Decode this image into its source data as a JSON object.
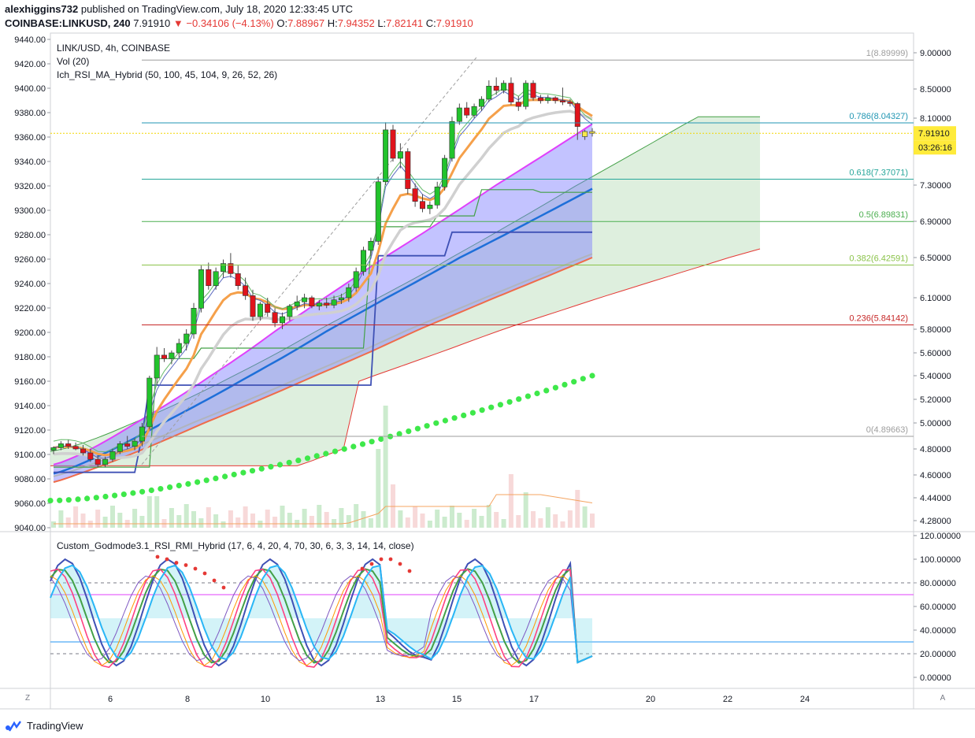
{
  "header": {
    "publisher": "alexhiggins732",
    "published_text": "published on TradingView.com, July 18, 2020 12:33:45 UTC",
    "symbol": "COINBASE:LINKUSD, 240",
    "last": "7.91910",
    "change": "−0.34106 (−4.13%)",
    "o_label": "O:",
    "o": "7.88967",
    "h_label": "H:",
    "h": "7.94352",
    "l_label": "L:",
    "l": "7.82141",
    "c_label": "C:",
    "c": "7.91910"
  },
  "legend": {
    "line1": "LINK/USD, 4h, COINBASE",
    "line2": "Vol (20)",
    "line3": "Ich_RSI_MA_Hybrid (50, 100, 45, 104, 9, 26, 52, 26)",
    "oscillator": "Custom_Godmode3.1_RSI_RMI_Hybrid (17, 6, 4, 20, 4, 70, 30, 6, 3, 3, 14, 14, close)"
  },
  "colors": {
    "up": "#22c32c",
    "down": "#e0141c",
    "cloud_bull": "#d3ead3",
    "cloud_bear": "#f6d6d6",
    "fib_1": "#9e9e9e",
    "fib_786": "#2196b3",
    "fib_618": "#26a69a",
    "fib_5": "#4caf50",
    "fib_382": "#8bc34a",
    "fib_236": "#c62828",
    "fib_0": "#9e9e9e",
    "last_price_bg": "#ffeb3b"
  },
  "footer": {
    "brand": "TradingView",
    "btn_left": "Z",
    "btn_right": "A"
  },
  "chart_data": {
    "type": "candlestick",
    "left_axis_ticks": [
      "9440.00",
      "9420.00",
      "9400.00",
      "9380.00",
      "9360.00",
      "9340.00",
      "9320.00",
      "9300.00",
      "9280.00",
      "9260.00",
      "9240.00",
      "9220.00",
      "9200.00",
      "9180.00",
      "9160.00",
      "9140.00",
      "9120.00",
      "9100.00",
      "9080.00",
      "9060.00",
      "9040.00"
    ],
    "right_axis_ticks": [
      "9.00000",
      "8.50000",
      "8.10000",
      "7.30000",
      "6.90000",
      "6.50000",
      "6.10000",
      "5.80000",
      "5.60000",
      "5.40000",
      "5.20000",
      "5.00000",
      "4.80000",
      "4.60000",
      "4.44000",
      "4.28000"
    ],
    "right_axis_values": [
      9.0,
      8.5,
      8.1,
      7.3,
      6.9,
      6.5,
      6.1,
      5.8,
      5.6,
      5.4,
      5.2,
      5.0,
      4.8,
      4.6,
      4.44,
      4.28
    ],
    "x_ticks": [
      "6",
      "8",
      "10",
      "13",
      "15",
      "17",
      "20",
      "22",
      "24"
    ],
    "last_price_label": "7.91910",
    "countdown": "03:26:16",
    "fib_levels": [
      {
        "label": "1(8.89999)",
        "value": 8.89999
      },
      {
        "label": "0.786(8.04327)",
        "value": 8.04327
      },
      {
        "label": "0.618(7.37071)",
        "value": 7.37071
      },
      {
        "label": "0.5(6.89831)",
        "value": 6.89831
      },
      {
        "label": "0.382(6.42591)",
        "value": 6.42591
      },
      {
        "label": "0.236(5.84142)",
        "value": 5.84142
      },
      {
        "label": "0(4.89663)",
        "value": 4.89663
      }
    ],
    "candles": [
      [
        4.79,
        4.82,
        4.76,
        4.81
      ],
      [
        4.81,
        4.86,
        4.79,
        4.84
      ],
      [
        4.84,
        4.87,
        4.8,
        4.82
      ],
      [
        4.82,
        4.85,
        4.79,
        4.8
      ],
      [
        4.8,
        4.83,
        4.75,
        4.77
      ],
      [
        4.77,
        4.8,
        4.7,
        4.72
      ],
      [
        4.72,
        4.75,
        4.66,
        4.68
      ],
      [
        4.68,
        4.74,
        4.66,
        4.72
      ],
      [
        4.72,
        4.8,
        4.7,
        4.78
      ],
      [
        4.78,
        4.86,
        4.76,
        4.84
      ],
      [
        4.84,
        4.9,
        4.8,
        4.82
      ],
      [
        4.82,
        4.88,
        4.79,
        4.86
      ],
      [
        4.86,
        5.0,
        4.82,
        4.97
      ],
      [
        4.97,
        5.4,
        4.95,
        5.38
      ],
      [
        5.38,
        5.65,
        5.32,
        5.58
      ],
      [
        5.58,
        5.64,
        5.52,
        5.55
      ],
      [
        5.55,
        5.62,
        5.5,
        5.6
      ],
      [
        5.6,
        5.72,
        5.56,
        5.68
      ],
      [
        5.68,
        5.8,
        5.62,
        5.76
      ],
      [
        5.76,
        6.05,
        5.72,
        6.0
      ],
      [
        6.0,
        6.42,
        5.96,
        6.38
      ],
      [
        6.38,
        6.45,
        6.18,
        6.22
      ],
      [
        6.22,
        6.4,
        6.18,
        6.36
      ],
      [
        6.36,
        6.48,
        6.3,
        6.44
      ],
      [
        6.44,
        6.55,
        6.3,
        6.34
      ],
      [
        6.34,
        6.42,
        6.18,
        6.22
      ],
      [
        6.22,
        6.3,
        6.08,
        6.12
      ],
      [
        6.12,
        6.18,
        5.88,
        5.92
      ],
      [
        5.92,
        6.06,
        5.88,
        6.04
      ],
      [
        6.04,
        6.1,
        5.92,
        5.96
      ],
      [
        5.96,
        6.0,
        5.82,
        5.86
      ],
      [
        5.86,
        5.96,
        5.8,
        5.92
      ],
      [
        5.92,
        6.04,
        5.88,
        6.02
      ],
      [
        6.02,
        6.12,
        5.98,
        6.06
      ],
      [
        6.06,
        6.14,
        6.0,
        6.1
      ],
      [
        6.1,
        6.12,
        6.0,
        6.02
      ],
      [
        6.02,
        6.08,
        5.98,
        6.05
      ],
      [
        6.05,
        6.1,
        6.0,
        6.03
      ],
      [
        6.03,
        6.12,
        6.0,
        6.08
      ],
      [
        6.08,
        6.14,
        6.04,
        6.1
      ],
      [
        6.1,
        6.24,
        6.06,
        6.2
      ],
      [
        6.2,
        6.4,
        6.16,
        6.36
      ],
      [
        6.36,
        6.62,
        6.32,
        6.58
      ],
      [
        6.58,
        6.72,
        6.52,
        6.68
      ],
      [
        6.68,
        7.4,
        6.64,
        7.34
      ],
      [
        7.34,
        8.05,
        7.3,
        7.96
      ],
      [
        7.96,
        8.02,
        7.58,
        7.62
      ],
      [
        7.62,
        7.8,
        7.5,
        7.7
      ],
      [
        7.7,
        7.74,
        7.2,
        7.26
      ],
      [
        7.26,
        7.32,
        7.06,
        7.12
      ],
      [
        7.12,
        7.2,
        7.0,
        7.04
      ],
      [
        7.04,
        7.12,
        6.98,
        7.08
      ],
      [
        7.08,
        7.34,
        7.04,
        7.28
      ],
      [
        7.28,
        7.66,
        7.24,
        7.62
      ],
      [
        7.62,
        8.12,
        7.58,
        8.06
      ],
      [
        8.06,
        8.3,
        8.02,
        8.24
      ],
      [
        8.24,
        8.32,
        8.1,
        8.14
      ],
      [
        8.14,
        8.3,
        8.1,
        8.26
      ],
      [
        8.26,
        8.4,
        8.2,
        8.36
      ],
      [
        8.36,
        8.62,
        8.32,
        8.54
      ],
      [
        8.54,
        8.66,
        8.42,
        8.48
      ],
      [
        8.48,
        8.62,
        8.44,
        8.58
      ],
      [
        8.58,
        8.66,
        8.28,
        8.32
      ],
      [
        8.32,
        8.4,
        8.2,
        8.26
      ],
      [
        8.26,
        8.62,
        8.22,
        8.58
      ],
      [
        8.58,
        8.62,
        8.34,
        8.38
      ],
      [
        8.38,
        8.42,
        8.3,
        8.34
      ],
      [
        8.34,
        8.42,
        8.3,
        8.38
      ],
      [
        8.38,
        8.4,
        8.3,
        8.34
      ],
      [
        8.34,
        8.52,
        8.28,
        8.32
      ],
      [
        8.32,
        8.36,
        8.26,
        8.3
      ],
      [
        8.3,
        8.32,
        7.84,
        8.0
      ],
      [
        7.88,
        7.96,
        7.84,
        7.94
      ],
      [
        7.94,
        7.98,
        7.88,
        7.92
      ]
    ],
    "oscillator_ticks": [
      "120.00000",
      "100.00000",
      "80.00000",
      "60.00000",
      "40.00000",
      "20.00000",
      "0.00000"
    ],
    "oscillator_levels": [
      80,
      70,
      30,
      20
    ]
  }
}
